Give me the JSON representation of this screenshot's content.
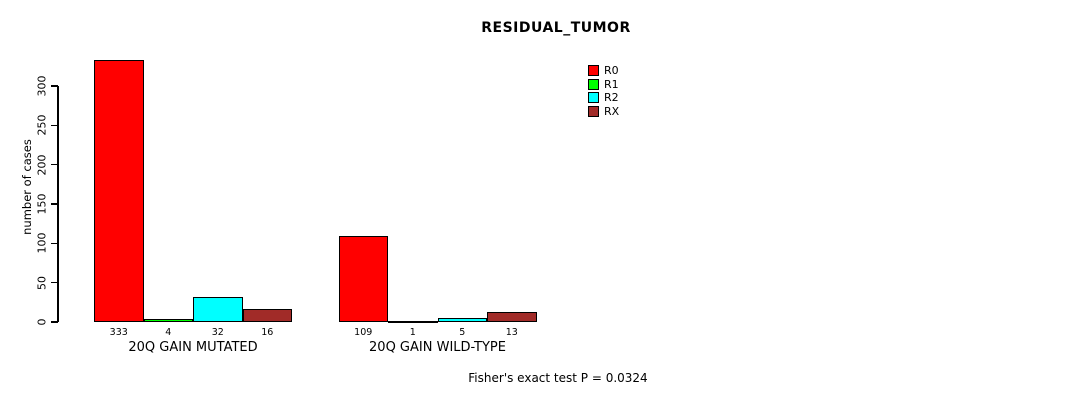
{
  "chart_data": {
    "type": "bar",
    "title": "RESIDUAL_TUMOR",
    "ylabel": "number of cases",
    "xlabel": "",
    "ylim": [
      0,
      300
    ],
    "yticks": [
      0,
      50,
      100,
      150,
      200,
      250,
      300
    ],
    "grid": false,
    "legend_position": "top-right",
    "series": [
      {
        "name": "R0",
        "color": "#FF0000"
      },
      {
        "name": "R1",
        "color": "#00FF00"
      },
      {
        "name": "R2",
        "color": "#00FFFF"
      },
      {
        "name": "RX",
        "color": "#A12B28"
      }
    ],
    "categories": [
      "20Q GAIN MUTATED",
      "20Q GAIN WILD-TYPE"
    ],
    "groups": [
      {
        "label": "20Q GAIN MUTATED",
        "values": [
          333,
          4,
          32,
          16
        ]
      },
      {
        "label": "20Q GAIN WILD-TYPE",
        "values": [
          109,
          1,
          5,
          13
        ]
      }
    ],
    "footnote": "Fisher's exact test P = 0.0324"
  }
}
